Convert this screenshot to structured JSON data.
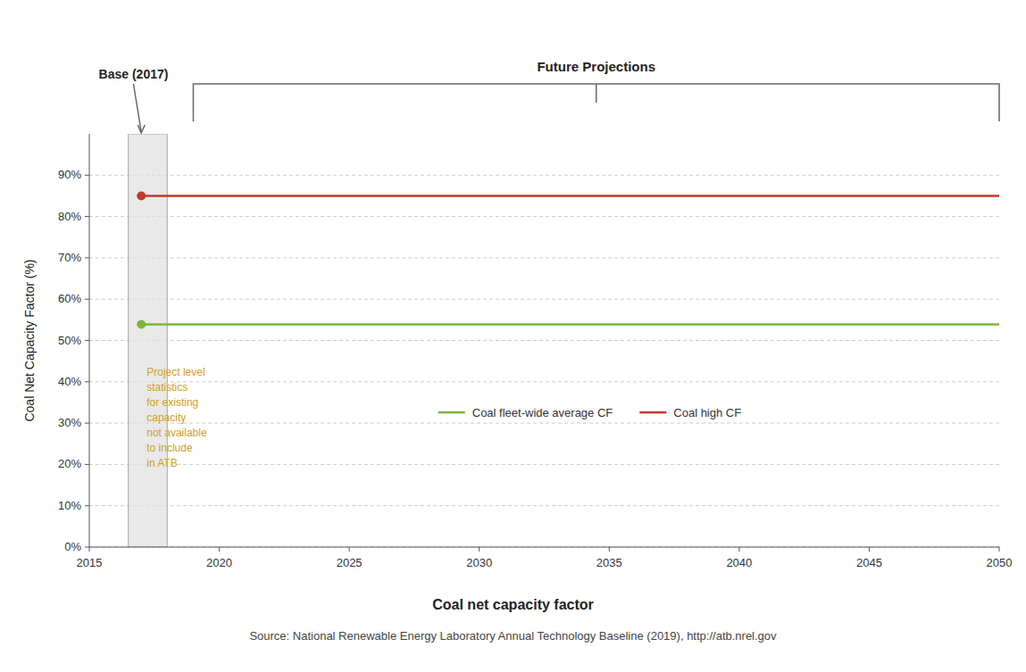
{
  "chart_data": {
    "type": "line",
    "ylabel": "Coal Net Capacity Factor (%)",
    "xlabel": "Coal net capacity factor",
    "source": "Source: National Renewable Energy Laboratory Annual Technology Baseline (2019), http://atb.nrel.gov",
    "xlim": [
      2015,
      2050
    ],
    "xticks": [
      2015,
      2020,
      2025,
      2030,
      2035,
      2040,
      2045,
      2050
    ],
    "ylim": [
      0,
      1.0
    ],
    "yticks": [
      {
        "value": 0.0,
        "label": "0%"
      },
      {
        "value": 0.1,
        "label": "10%"
      },
      {
        "value": 0.2,
        "label": "20%"
      },
      {
        "value": 0.3,
        "label": "30%"
      },
      {
        "value": 0.4,
        "label": "40%"
      },
      {
        "value": 0.5,
        "label": "50%"
      },
      {
        "value": 0.6,
        "label": "60%"
      },
      {
        "value": 0.7,
        "label": "70%"
      },
      {
        "value": 0.8,
        "label": "80%"
      },
      {
        "value": 0.9,
        "label": "90%"
      }
    ],
    "grid": true,
    "legend": "bottom",
    "series": [
      {
        "name": "Coal fleet-wide average CF",
        "color": "#7db43e",
        "x": [
          2017,
          2050
        ],
        "values": [
          0.539,
          0.539
        ],
        "marker": "circle"
      },
      {
        "name": "Coal high CF",
        "color": "#c0392b",
        "x": [
          2017,
          2050
        ],
        "values": [
          0.85,
          0.85
        ],
        "marker": "circle"
      }
    ],
    "base_year": 2017,
    "projection_start": 2018,
    "base_label": "Base (2017)",
    "future_label": "Future Projections",
    "projection_range": [
      2019,
      2050
    ],
    "annotation": {
      "text": "Project level\nstatistics\nfor existing\ncapacity\nnot available\nto include\nin ATB",
      "color": "#d4a020"
    }
  }
}
